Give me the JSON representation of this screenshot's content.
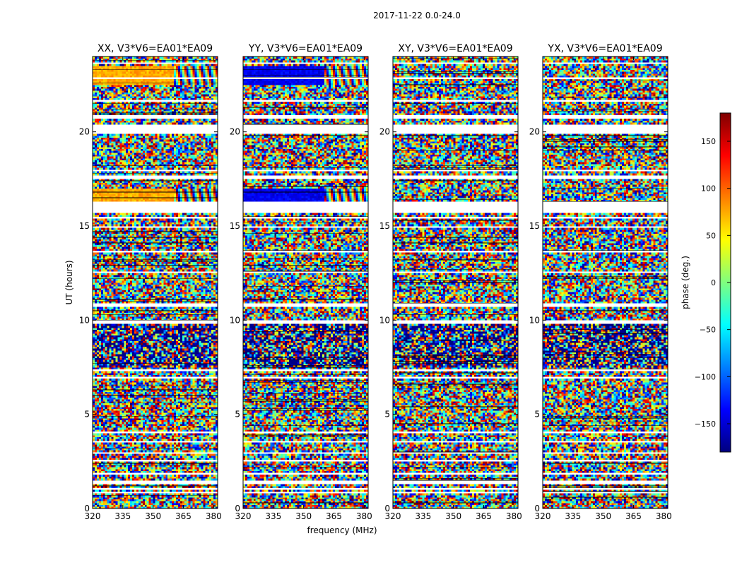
{
  "suptitle": "2017-11-22 0.0-24.0",
  "chart_data": {
    "type": "heatmap",
    "panel_titles": [
      "XX, V3*V6=EA01*EA09",
      "YY, V3*V6=EA01*EA09",
      "XY, V3*V6=EA01*EA09",
      "YX, V3*V6=EA01*EA09"
    ],
    "xlabel": "frequency (MHz)",
    "ylabel": "UT (hours)",
    "xlim": [
      320,
      382
    ],
    "ylim": [
      0,
      24
    ],
    "xticks": [
      "320",
      "335",
      "350",
      "365",
      "380"
    ],
    "yticks": [
      "0",
      "5",
      "10",
      "15",
      "20"
    ],
    "colorbar": {
      "label": "phase (deg.)",
      "range": [
        -180,
        180
      ],
      "ticks": [
        "150",
        "100",
        "50",
        "0",
        "−50",
        "−100",
        "−150"
      ],
      "colormap": [
        "#00007f",
        "#0000ff",
        "#007fff",
        "#00ffff",
        "#7fff7f",
        "#ffff00",
        "#ff7f00",
        "#ff0000",
        "#7f0000"
      ]
    },
    "gaps_ut": [
      [
        0.8,
        0.9
      ],
      [
        1.05,
        1.1
      ],
      [
        1.3,
        1.5
      ],
      [
        1.85,
        1.95
      ],
      [
        2.45,
        2.65
      ],
      [
        2.9,
        3.0
      ],
      [
        3.45,
        3.65
      ],
      [
        4.05,
        4.1
      ],
      [
        4.5,
        4.55
      ],
      [
        5.3,
        5.35
      ],
      [
        6.0,
        6.05
      ],
      [
        6.9,
        7.0
      ],
      [
        7.35,
        7.45
      ],
      [
        9.85,
        10.05
      ],
      [
        10.3,
        10.35
      ],
      [
        10.75,
        10.9
      ],
      [
        12.5,
        12.6
      ],
      [
        13.6,
        13.7
      ],
      [
        14.9,
        15.0
      ],
      [
        15.4,
        15.5
      ],
      [
        15.75,
        16.3
      ],
      [
        17.5,
        17.7
      ],
      [
        17.95,
        18.05
      ],
      [
        19.0,
        19.05
      ],
      [
        19.95,
        20.4
      ],
      [
        20.7,
        20.9
      ],
      [
        21.6,
        21.75
      ],
      [
        22.8,
        22.9
      ],
      [
        23.6,
        23.7
      ]
    ],
    "coherent_ut_xx_yy": [
      [
        16.35,
        17.0
      ],
      [
        22.5,
        23.55
      ]
    ],
    "coherent_phase_deg": {
      "XX": 75,
      "YY": -140
    }
  }
}
